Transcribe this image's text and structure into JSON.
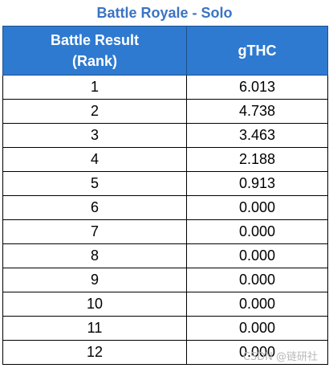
{
  "title": "Battle Royale - Solo",
  "columns": {
    "rank_header_line1": "Battle Result",
    "rank_header_line2": "(Rank)",
    "value_header": "gTHC"
  },
  "rows": [
    {
      "rank": "1",
      "value": "6.013"
    },
    {
      "rank": "2",
      "value": "4.738"
    },
    {
      "rank": "3",
      "value": "3.463"
    },
    {
      "rank": "4",
      "value": "2.188"
    },
    {
      "rank": "5",
      "value": "0.913"
    },
    {
      "rank": "6",
      "value": "0.000"
    },
    {
      "rank": "7",
      "value": "0.000"
    },
    {
      "rank": "8",
      "value": "0.000"
    },
    {
      "rank": "9",
      "value": "0.000"
    },
    {
      "rank": "10",
      "value": "0.000"
    },
    {
      "rank": "11",
      "value": "0.000"
    },
    {
      "rank": "12",
      "value": "0.000"
    }
  ],
  "watermark": "CSDN @链研社"
}
